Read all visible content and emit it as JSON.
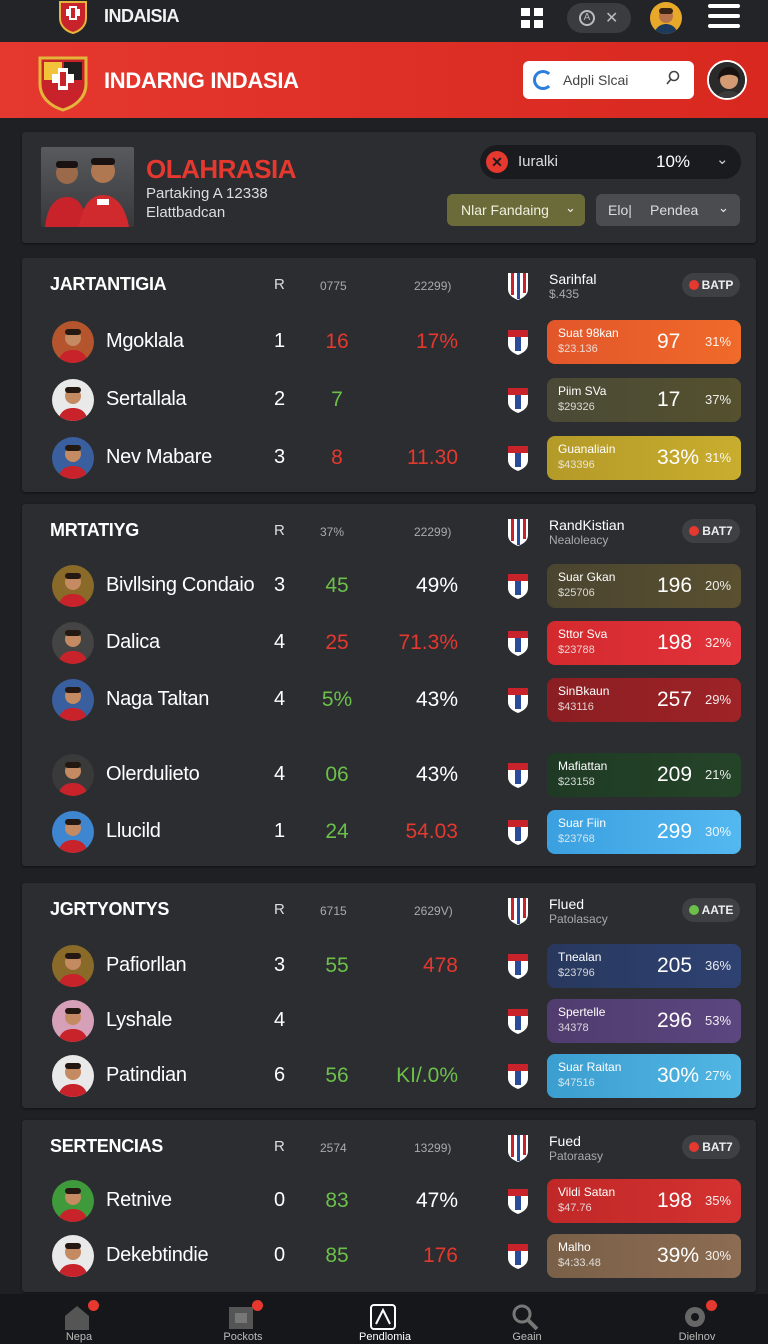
{
  "topbar": {
    "title": "INDAISIA"
  },
  "banner": {
    "title": "INDARNG INDASIA",
    "search_text": "Adpli Slcai"
  },
  "hero": {
    "name": "OLAHRASIA",
    "sub1": "Partaking A 12338",
    "sub2": "Elattbadcan",
    "filter_label": "Iuralki",
    "filter_value": "10%",
    "btn1": "Nlar Fandaing",
    "btn2_a": "Elo|",
    "btn2_b": "Pendea"
  },
  "sections": [
    {
      "title": "JARTANTIGIA",
      "col_r": "R",
      "col_a": "0775",
      "col_b": "22299)",
      "cap1": "Sarihfal",
      "cap2": "$.435",
      "badge": "BATP",
      "rows": [
        {
          "name": "Mgoklala",
          "r": "1",
          "n": "16",
          "p": "17%",
          "tile_n1": "Suat 98kan",
          "tile_n2": "$23.136",
          "tile_big": "97",
          "tile_sm": "31%"
        },
        {
          "name": "Sertallala",
          "r": "2",
          "n": "7",
          "p": "",
          "tile_n1": "Piim SVa",
          "tile_n2": "$29326",
          "tile_big": "17",
          "tile_sm": "37%"
        },
        {
          "name": "Nev Mabare",
          "r": "3",
          "n": "8",
          "p": "11.30",
          "tile_n1": "Guanaliain",
          "tile_n2": "$43396",
          "tile_big": "33%",
          "tile_sm": "31%"
        }
      ]
    },
    {
      "title": "MRTATIYG",
      "col_r": "R",
      "col_a": "37%",
      "col_b": "22299)",
      "cap1": "RandKistian",
      "cap2": "Nealoleacy",
      "badge": "BAT7",
      "rows": [
        {
          "name": "Bivllsing Condaio",
          "r": "3",
          "n": "45",
          "p": "49%",
          "tile_n1": "Suar Gkan",
          "tile_n2": "$25706",
          "tile_big": "196",
          "tile_sm": "20%"
        },
        {
          "name": "Dalica",
          "r": "4",
          "n": "25",
          "p": "71.3%",
          "tile_n1": "Sttor Sva",
          "tile_n2": "$23788",
          "tile_big": "198",
          "tile_sm": "32%"
        },
        {
          "name": "Naga Taltan",
          "r": "4",
          "n": "5%",
          "p": "43%",
          "tile_n1": "SinBkaun",
          "tile_n2": "$43116",
          "tile_big": "257",
          "tile_sm": "29%"
        },
        {
          "name": "Olerdulieto",
          "r": "4",
          "n": "06",
          "p": "43%",
          "tile_n1": "Mafiattan",
          "tile_n2": "$23158",
          "tile_big": "209",
          "tile_sm": "21%"
        },
        {
          "name": "Llucild",
          "r": "1",
          "n": "24",
          "p": "54.03",
          "tile_n1": "Suar Fiin",
          "tile_n2": "$23768",
          "tile_big": "299",
          "tile_sm": "30%"
        }
      ]
    },
    {
      "title": "JGRTYONTYS",
      "col_r": "R",
      "col_a": "6715",
      "col_b": "2629V)",
      "cap1": "Flued",
      "cap2": "Patolasacy",
      "badge": "AATE",
      "rows": [
        {
          "name": "Pafiorllan",
          "r": "3",
          "n": "55",
          "p": "478",
          "tile_n1": "Tnealan",
          "tile_n2": "$23796",
          "tile_big": "205",
          "tile_sm": "36%"
        },
        {
          "name": "Lyshale",
          "r": "4",
          "n": "",
          "p": "",
          "tile_n1": "Spertelle",
          "tile_n2": "34378",
          "tile_big": "296",
          "tile_sm": "53%"
        },
        {
          "name": "Patindian",
          "r": "6",
          "n": "56",
          "p": "KI/.0%",
          "tile_n1": "Suar Raitan",
          "tile_n2": "$47516",
          "tile_big": "30%",
          "tile_sm": "27%"
        }
      ]
    },
    {
      "title": "SERTENCIAS",
      "col_r": "R",
      "col_a": "2574",
      "col_b": "13299)",
      "cap1": "Fued",
      "cap2": "Patoraasy",
      "badge": "BAT7",
      "rows": [
        {
          "name": "Retnive",
          "r": "0",
          "n": "83",
          "p": "47%",
          "tile_n1": "Vildi Satan",
          "tile_n2": "$47.76",
          "tile_big": "198",
          "tile_sm": "35%"
        },
        {
          "name": "Dekebtindie",
          "r": "0",
          "n": "85",
          "p": "176",
          "tile_n1": "Malho",
          "tile_n2": "$4:33.48",
          "tile_big": "39%",
          "tile_sm": "30%"
        }
      ]
    }
  ],
  "tabs": [
    {
      "label": "Nepa"
    },
    {
      "label": "Pockots"
    },
    {
      "label": "Pendlomia"
    },
    {
      "label": "Geain"
    },
    {
      "label": "Dielnov"
    }
  ],
  "colors": {
    "accent": "#e5382e",
    "green": "#6cc04a",
    "red": "#e5382e"
  }
}
